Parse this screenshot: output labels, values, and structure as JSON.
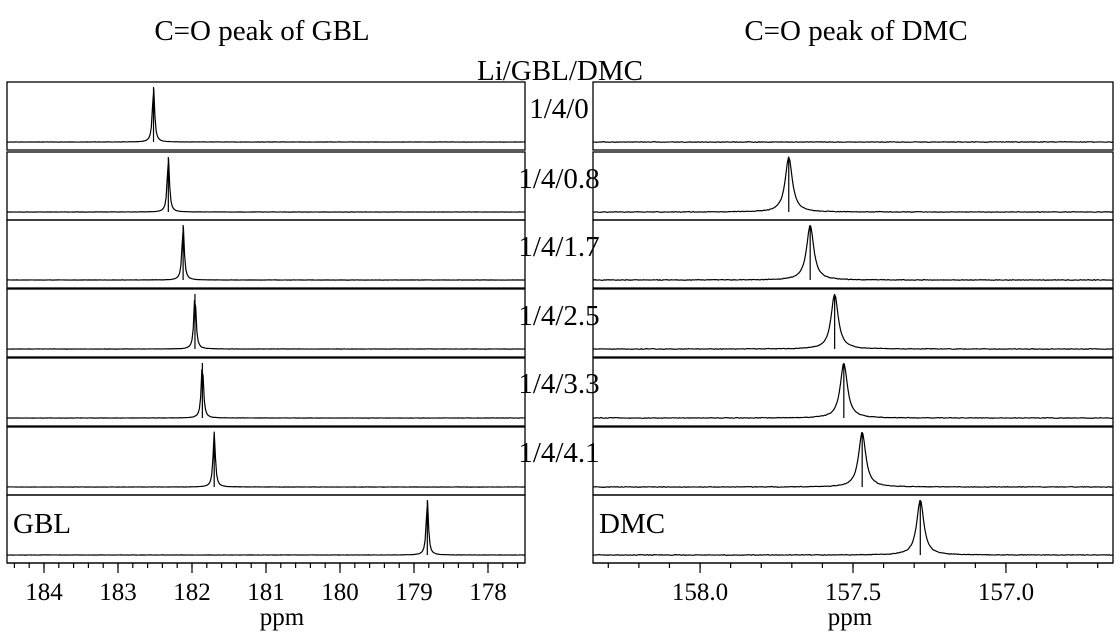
{
  "chart_data": {
    "type": "line",
    "group_label": "Li/GBL/DMC",
    "panels": [
      {
        "id": "gbl",
        "title": "C=O peak of GBL",
        "xlabel": "ppm",
        "xlim": [
          184.5,
          177.5
        ],
        "ticks": [
          184,
          183,
          182,
          181,
          180,
          179,
          178
        ],
        "tick_labels": [
          "184",
          "183",
          "182",
          "181",
          "180",
          "179",
          "178"
        ],
        "minor_step": 0.2,
        "peak_width": 0.018,
        "noise": 0.003,
        "series": [
          {
            "name": "1/4/0",
            "peak": 182.52
          },
          {
            "name": "1/4/0.8",
            "peak": 182.32
          },
          {
            "name": "1/4/1.7",
            "peak": 182.12
          },
          {
            "name": "1/4/2.5",
            "peak": 181.96
          },
          {
            "name": "1/4/3.3",
            "peak": 181.86
          },
          {
            "name": "1/4/4.1",
            "peak": 181.7
          },
          {
            "name": "GBL",
            "peak": 178.82
          }
        ]
      },
      {
        "id": "dmc",
        "title": "C=O peak of DMC",
        "xlabel": "ppm",
        "xlim": [
          158.35,
          156.65
        ],
        "ticks": [
          158.0,
          157.5,
          157.0
        ],
        "tick_labels": [
          "158.0",
          "157.5",
          "157.0"
        ],
        "minor_step": 0.1,
        "peak_width": 0.014,
        "noise": 0.008,
        "series": [
          {
            "name": "1/4/0",
            "peak": null
          },
          {
            "name": "1/4/0.8",
            "peak": 157.71
          },
          {
            "name": "1/4/1.7",
            "peak": 157.64
          },
          {
            "name": "1/4/2.5",
            "peak": 157.56
          },
          {
            "name": "1/4/3.3",
            "peak": 157.53
          },
          {
            "name": "1/4/4.1",
            "peak": 157.47
          },
          {
            "name": "DMC",
            "peak": 157.28
          }
        ]
      }
    ]
  }
}
